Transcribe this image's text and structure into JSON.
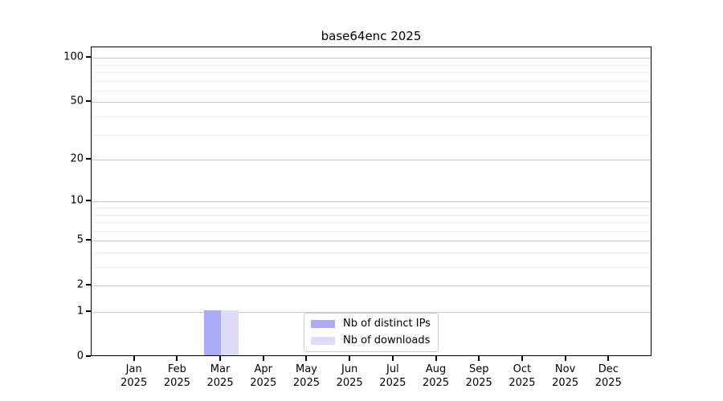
{
  "chart_data": {
    "type": "bar",
    "title": "base64enc 2025",
    "categories": [
      {
        "month": "Jan",
        "year": "2025"
      },
      {
        "month": "Feb",
        "year": "2025"
      },
      {
        "month": "Mar",
        "year": "2025"
      },
      {
        "month": "Apr",
        "year": "2025"
      },
      {
        "month": "May",
        "year": "2025"
      },
      {
        "month": "Jun",
        "year": "2025"
      },
      {
        "month": "Jul",
        "year": "2025"
      },
      {
        "month": "Aug",
        "year": "2025"
      },
      {
        "month": "Sep",
        "year": "2025"
      },
      {
        "month": "Oct",
        "year": "2025"
      },
      {
        "month": "Nov",
        "year": "2025"
      },
      {
        "month": "Dec",
        "year": "2025"
      }
    ],
    "series": [
      {
        "name": "Nb of distinct IPs",
        "color": "#aaaaf5",
        "values": [
          0,
          0,
          1,
          0,
          0,
          0,
          0,
          0,
          0,
          0,
          0,
          0
        ]
      },
      {
        "name": "Nb of downloads",
        "color": "#dcdcf8",
        "values": [
          0,
          0,
          1,
          0,
          0,
          0,
          0,
          0,
          0,
          0,
          0,
          0
        ]
      }
    ],
    "y_axis": {
      "scale": "log10(value+1)",
      "tick_values": [
        0,
        1,
        2,
        5,
        10,
        20,
        50,
        100
      ],
      "minor_gridline_values": [
        3,
        4,
        6,
        7,
        8,
        9,
        30,
        40,
        60,
        70,
        80,
        90
      ],
      "axis_max": 118,
      "ylim": [
        0,
        118
      ]
    },
    "legend": {
      "position": "bottom-center-inside"
    },
    "grid": "on",
    "colors": {
      "grid_major": "#c9c9c9",
      "grid_minor": "#efefef",
      "spine": "#000000",
      "background": "#ffffff"
    }
  }
}
